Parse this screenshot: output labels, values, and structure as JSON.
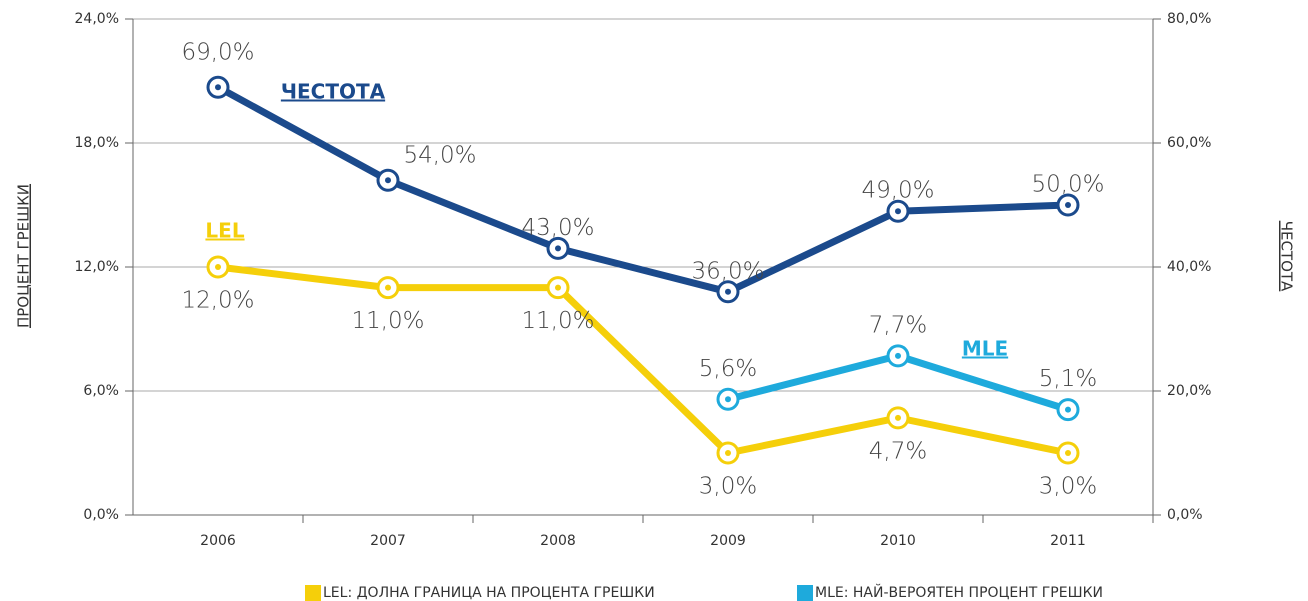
{
  "chart_data": {
    "type": "line",
    "categories": [
      "2006",
      "2007",
      "2008",
      "2009",
      "2010",
      "2011"
    ],
    "y_label": "ПРОЦЕНТ ГРЕШКИ",
    "y2_label": "ЧЕСТОТА",
    "ylim": [
      0,
      24
    ],
    "yticks": [
      {
        "value": 0,
        "label": "0,0%"
      },
      {
        "value": 6,
        "label": "6,0%"
      },
      {
        "value": 12,
        "label": "12,0%"
      },
      {
        "value": 18,
        "label": "18,0%"
      },
      {
        "value": 24,
        "label": "24,0%"
      }
    ],
    "y2lim": [
      0,
      80
    ],
    "y2ticks": [
      {
        "value": 0,
        "label": "0,0%"
      },
      {
        "value": 20,
        "label": "20,0%"
      },
      {
        "value": 40,
        "label": "40,0%"
      },
      {
        "value": 60,
        "label": "60,0%"
      },
      {
        "value": 80,
        "label": "80,0%"
      }
    ],
    "grid": true,
    "series": [
      {
        "name": "ЧЕСТОТА",
        "color": "#1b4a8c",
        "axis": "y2",
        "values": [
          69,
          54,
          43,
          36,
          49,
          50
        ],
        "value_labels": [
          "69,0%",
          "54,0%",
          "43,0%",
          "36,0%",
          "49,0%",
          "50,0%"
        ]
      },
      {
        "name": "LEL",
        "legend_label": "LEL: ДОЛНА ГРАНИЦА НА ПРОЦЕНТА ГРЕШКИ",
        "color": "#f5cf0a",
        "values": [
          12.0,
          11.0,
          11.0,
          3.0,
          4.7,
          3.0
        ],
        "value_labels": [
          "12,0%",
          "11,0%",
          "11,0%",
          "3,0%",
          "4,7%",
          "3,0%"
        ]
      },
      {
        "name": "MLE",
        "legend_label": "MLE: НАЙ-ВЕРОЯТЕН ПРОЦЕНТ ГРЕШКИ",
        "color": "#1eaadc",
        "values": [
          null,
          null,
          null,
          5.6,
          7.7,
          5.1
        ],
        "value_labels": [
          null,
          null,
          null,
          "5,6%",
          "7,7%",
          "5,1%"
        ]
      }
    ]
  }
}
